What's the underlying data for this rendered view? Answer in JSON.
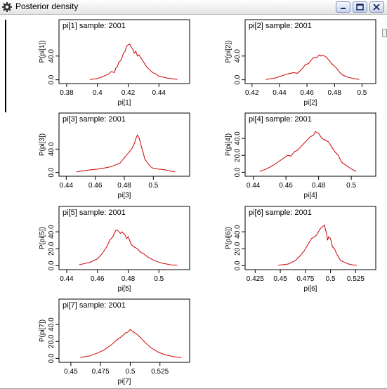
{
  "window": {
    "title": "Posterior density",
    "icon": "gear-icon"
  },
  "line_color": "#cc0000",
  "chart_data": [
    {
      "type": "line",
      "title": "pi[1] sample: 2001",
      "xlabel": "pi[1]",
      "ylabel": "P(pi[1])",
      "xticks": [
        0.38,
        0.4,
        0.42,
        0.44
      ],
      "xtick_labels": [
        "0.38",
        "0.4",
        "0.42",
        "0.44"
      ],
      "xlim": [
        0.375,
        0.46
      ],
      "yticks": [
        0,
        40
      ],
      "ytick_labels": [
        "0.0",
        "40.0"
      ],
      "ylim": [
        -4,
        80
      ],
      "x": [
        0.395,
        0.4,
        0.403,
        0.405,
        0.407,
        0.409,
        0.411,
        0.412,
        0.413,
        0.414,
        0.415,
        0.416,
        0.417,
        0.418,
        0.419,
        0.42,
        0.421,
        0.422,
        0.423,
        0.424,
        0.425,
        0.426,
        0.427,
        0.428,
        0.43,
        0.432,
        0.434,
        0.436,
        0.438,
        0.44,
        0.442,
        0.445,
        0.448,
        0.452
      ],
      "y": [
        0.5,
        2,
        5,
        7,
        9,
        14,
        12,
        20,
        22,
        30,
        32,
        37,
        45,
        48,
        57,
        59,
        60,
        55,
        52,
        45,
        48,
        40,
        42,
        38,
        30,
        22,
        17,
        12,
        10,
        6,
        5,
        3,
        2,
        0.5
      ]
    },
    {
      "type": "line",
      "title": "pi[2] sample: 2001",
      "xlabel": "pi[2]",
      "ylabel": "P(pi[2])",
      "xticks": [
        0.42,
        0.44,
        0.46,
        0.48,
        0.5
      ],
      "xtick_labels": [
        "0.42",
        "0.44",
        "0.46",
        "0.48",
        "0.5"
      ],
      "xlim": [
        0.415,
        0.51
      ],
      "yticks": [
        0,
        40
      ],
      "ytick_labels": [
        "0.0",
        "40.0"
      ],
      "ylim": [
        -4,
        80
      ],
      "x": [
        0.43,
        0.437,
        0.442,
        0.446,
        0.45,
        0.453,
        0.455,
        0.457,
        0.459,
        0.461,
        0.463,
        0.465,
        0.467,
        0.469,
        0.47,
        0.472,
        0.474,
        0.476,
        0.478,
        0.48,
        0.482,
        0.484,
        0.486,
        0.488,
        0.49,
        0.494,
        0.498
      ],
      "y": [
        0.5,
        3,
        7,
        10,
        12,
        11,
        15,
        20,
        26,
        27,
        33,
        38,
        37,
        42,
        40,
        41,
        38,
        33,
        27,
        23,
        18,
        12,
        8,
        6,
        4,
        2,
        0.5
      ]
    },
    {
      "type": "line",
      "title": "pi[3] sample: 2001",
      "xlabel": "pi[3]",
      "ylabel": "P(pi[3])",
      "xticks": [
        0.44,
        0.46,
        0.48,
        0.5
      ],
      "xtick_labels": [
        "0.44",
        "0.46",
        "0.48",
        "0.5"
      ],
      "xlim": [
        0.435,
        0.525
      ],
      "yticks": [
        0,
        40
      ],
      "ytick_labels": [
        "0.0",
        "40.0"
      ],
      "ylim": [
        -4,
        80
      ],
      "x": [
        0.447,
        0.455,
        0.462,
        0.467,
        0.471,
        0.474,
        0.477,
        0.479,
        0.481,
        0.483,
        0.485,
        0.487,
        0.488,
        0.489,
        0.49,
        0.491,
        0.492,
        0.493,
        0.494,
        0.496,
        0.498,
        0.5,
        0.503,
        0.507,
        0.511,
        0.515
      ],
      "y": [
        1,
        4,
        6,
        8,
        10,
        13,
        16,
        22,
        28,
        34,
        40,
        50,
        58,
        64,
        60,
        52,
        42,
        34,
        24,
        16,
        10,
        7,
        6,
        5,
        3,
        1
      ]
    },
    {
      "type": "line",
      "title": "pi[4] sample: 2001",
      "xlabel": "pi[4]",
      "ylabel": "P(pi[4])",
      "xticks": [
        0.44,
        0.46,
        0.48,
        0.5
      ],
      "xtick_labels": [
        "0.44",
        "0.46",
        "0.48",
        "0.5"
      ],
      "xlim": [
        0.435,
        0.515
      ],
      "yticks": [
        0,
        20,
        40
      ],
      "ytick_labels": [
        "0.0",
        "20.0",
        "40.0"
      ],
      "ylim": [
        -3,
        55
      ],
      "x": [
        0.444,
        0.448,
        0.452,
        0.455,
        0.458,
        0.461,
        0.463,
        0.465,
        0.467,
        0.469,
        0.471,
        0.473,
        0.475,
        0.477,
        0.478,
        0.48,
        0.482,
        0.484,
        0.486,
        0.488,
        0.49,
        0.492,
        0.494,
        0.497,
        0.5,
        0.503
      ],
      "y": [
        1,
        4,
        8,
        12,
        16,
        20,
        19,
        24,
        26,
        30,
        34,
        38,
        42,
        44,
        48,
        46,
        40,
        38,
        36,
        30,
        24,
        20,
        12,
        8,
        4,
        1
      ]
    },
    {
      "type": "line",
      "title": "pi[5] sample: 2001",
      "xlabel": "pi[5]",
      "ylabel": "P(pi[5])",
      "xticks": [
        0.44,
        0.46,
        0.48,
        0.5
      ],
      "xtick_labels": [
        "0.44",
        "0.46",
        "0.48",
        "0.5"
      ],
      "xlim": [
        0.435,
        0.52
      ],
      "yticks": [
        0,
        20,
        40
      ],
      "ytick_labels": [
        "0.0",
        "20.0",
        "40.0"
      ],
      "ylim": [
        -3,
        55
      ],
      "x": [
        0.448,
        0.455,
        0.46,
        0.463,
        0.466,
        0.468,
        0.47,
        0.471,
        0.472,
        0.473,
        0.474,
        0.475,
        0.476,
        0.477,
        0.478,
        0.479,
        0.48,
        0.481,
        0.482,
        0.484,
        0.486,
        0.488,
        0.49,
        0.493,
        0.497,
        0.502,
        0.508,
        0.512
      ],
      "y": [
        1,
        4,
        8,
        14,
        22,
        30,
        34,
        38,
        42,
        42,
        40,
        38,
        40,
        38,
        36,
        32,
        34,
        30,
        25,
        22,
        20,
        16,
        14,
        10,
        6,
        3,
        1,
        0.5
      ]
    },
    {
      "type": "line",
      "title": "pi[6] sample: 2001",
      "xlabel": "pi[6]",
      "ylabel": "P(pi[6])",
      "xticks": [
        0.425,
        0.45,
        0.475,
        0.5,
        0.525
      ],
      "xtick_labels": [
        "0.425",
        "0.45",
        "0.475",
        "0.5",
        "0.525"
      ],
      "xlim": [
        0.415,
        0.545
      ],
      "yticks": [
        0,
        20,
        40
      ],
      "ytick_labels": [
        "0.0",
        "20.0",
        "40.0"
      ],
      "ylim": [
        -3,
        55
      ],
      "x": [
        0.448,
        0.458,
        0.465,
        0.47,
        0.474,
        0.478,
        0.481,
        0.484,
        0.486,
        0.488,
        0.49,
        0.492,
        0.494,
        0.495,
        0.496,
        0.497,
        0.498,
        0.5,
        0.502,
        0.504,
        0.506,
        0.508,
        0.51,
        0.514,
        0.518,
        0.522,
        0.526
      ],
      "y": [
        0.5,
        2,
        6,
        12,
        18,
        26,
        32,
        34,
        36,
        40,
        44,
        46,
        48,
        42,
        38,
        30,
        34,
        32,
        22,
        20,
        14,
        10,
        6,
        4,
        2,
        1,
        0.5
      ]
    },
    {
      "type": "line",
      "title": "pi[7] sample: 2001",
      "xlabel": "pi[7]",
      "ylabel": "P(pi[7])",
      "xticks": [
        0.45,
        0.475,
        0.5,
        0.525
      ],
      "xtick_labels": [
        "0.45",
        "0.475",
        "0.5",
        "0.525"
      ],
      "xlim": [
        0.44,
        0.55
      ],
      "yticks": [
        0,
        20,
        40
      ],
      "ytick_labels": [
        "0.0",
        "20.0",
        "40.0"
      ],
      "ylim": [
        -3,
        55
      ],
      "x": [
        0.458,
        0.466,
        0.472,
        0.478,
        0.484,
        0.489,
        0.493,
        0.496,
        0.498,
        0.5,
        0.502,
        0.504,
        0.506,
        0.509,
        0.513,
        0.518,
        0.524,
        0.53,
        0.537,
        0.543
      ],
      "y": [
        1,
        3,
        6,
        10,
        16,
        22,
        26,
        30,
        31,
        34,
        32,
        30,
        28,
        24,
        18,
        12,
        7,
        4,
        2,
        1
      ]
    }
  ]
}
